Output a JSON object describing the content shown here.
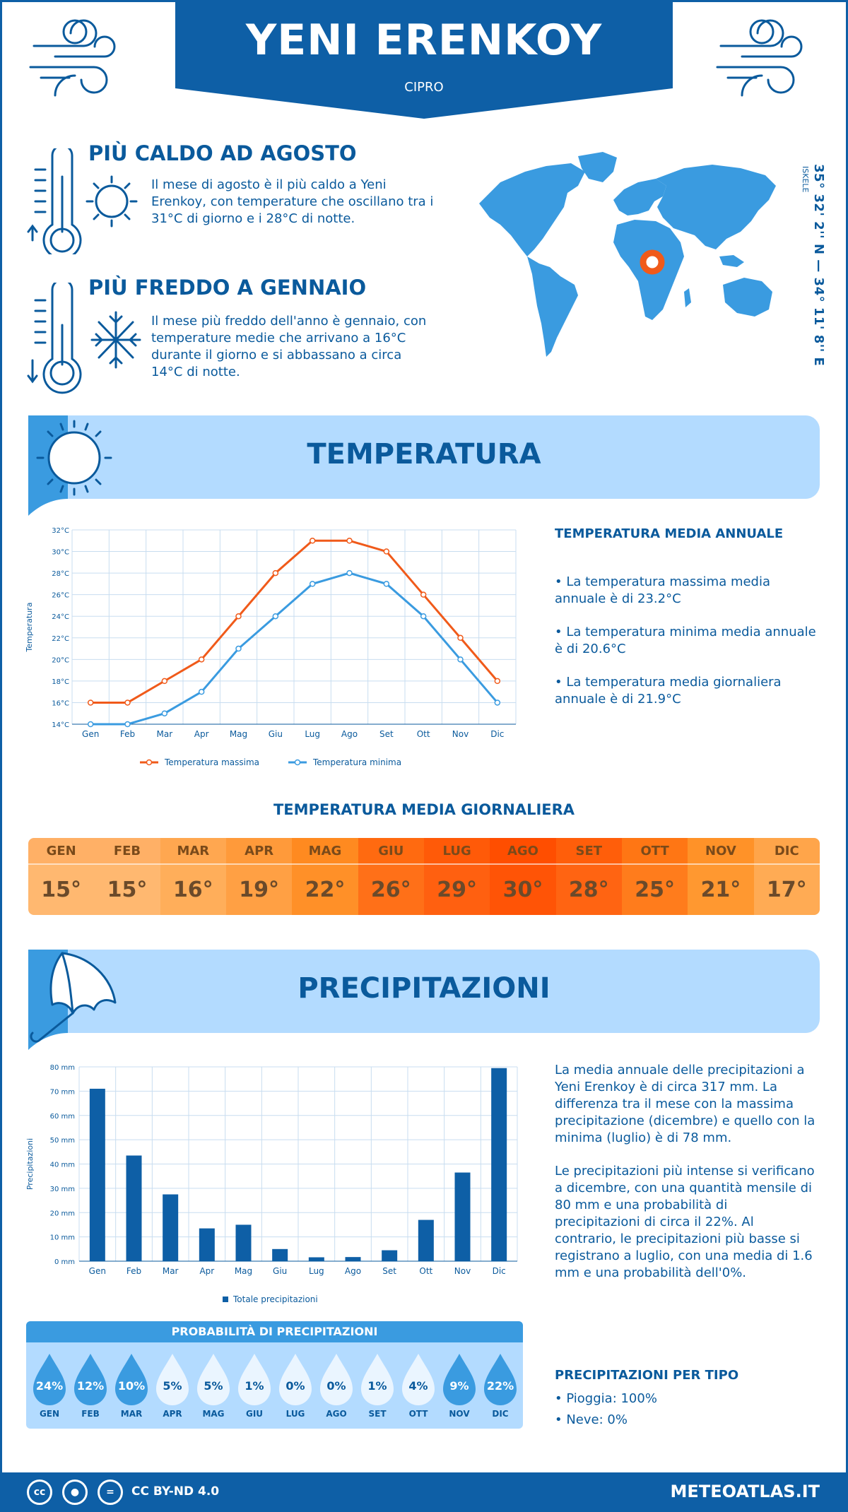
{
  "header": {
    "title": "YENI ERENKOY",
    "subtitle": "CIPRO"
  },
  "facts": [
    {
      "title": "PIÙ CALDO AD AGOSTO",
      "text": "Il mese di agosto è il più caldo a Yeni Erenkoy, con temperature che oscillano tra i 31°C di giorno e i 28°C di notte."
    },
    {
      "title": "PIÙ FREDDO A GENNAIO",
      "text": "Il mese più freddo dell'anno è gennaio, con temperature medie che arrivano a 16°C durante il giorno e si abbassano a circa 14°C di notte."
    }
  ],
  "location": {
    "coords": "35° 32' 2'' N — 34° 11' 8'' E",
    "region": "ISKELE"
  },
  "temperature": {
    "section_title": "TEMPERATURA",
    "side_title": "TEMPERATURA MEDIA ANNUALE",
    "bullets": [
      "• La temperatura massima media annuale è di 23.2°C",
      "• La temperatura minima media annuale è di 20.6°C",
      "• La temperatura media giornaliera annuale è di 21.9°C"
    ],
    "daily_title": "TEMPERATURA MEDIA GIORNALIERA",
    "daily": [
      {
        "month": "GEN",
        "value": "15°",
        "head": "#ffb066",
        "body": "#ffb870"
      },
      {
        "month": "FEB",
        "value": "15°",
        "head": "#ffb066",
        "body": "#ffb870"
      },
      {
        "month": "MAR",
        "value": "16°",
        "head": "#ffa750",
        "body": "#ffae5a"
      },
      {
        "month": "APR",
        "value": "19°",
        "head": "#ff9a3a",
        "body": "#ffa044"
      },
      {
        "month": "MAG",
        "value": "22°",
        "head": "#ff8a20",
        "body": "#ff9028"
      },
      {
        "month": "GIU",
        "value": "26°",
        "head": "#ff6a10",
        "body": "#ff7018"
      },
      {
        "month": "LUG",
        "value": "29°",
        "head": "#ff5a08",
        "body": "#ff6010"
      },
      {
        "month": "AGO",
        "value": "30°",
        "head": "#ff4e00",
        "body": "#ff5406"
      },
      {
        "month": "SET",
        "value": "28°",
        "head": "#ff5e0a",
        "body": "#ff6412"
      },
      {
        "month": "OTT",
        "value": "25°",
        "head": "#ff7614",
        "body": "#ff7c1c"
      },
      {
        "month": "NOV",
        "value": "21°",
        "head": "#ff9228",
        "body": "#ff9830"
      },
      {
        "month": "DIC",
        "value": "17°",
        "head": "#ffa54a",
        "body": "#ffab54"
      }
    ]
  },
  "chart_data": [
    {
      "type": "line",
      "categories": [
        "Gen",
        "Feb",
        "Mar",
        "Apr",
        "Mag",
        "Giu",
        "Lug",
        "Ago",
        "Set",
        "Ott",
        "Nov",
        "Dic"
      ],
      "series": [
        {
          "name": "Temperatura massima",
          "values": [
            16,
            16,
            18,
            20,
            24,
            28,
            31,
            31,
            30,
            26,
            22,
            18
          ],
          "color": "#f05a1a"
        },
        {
          "name": "Temperatura minima",
          "values": [
            14,
            14,
            15,
            17,
            21,
            24,
            27,
            28,
            27,
            24,
            20,
            16
          ],
          "color": "#3a9be0"
        }
      ],
      "ylabel": "Temperatura",
      "ylim": [
        14,
        32
      ],
      "yticks": [
        "14°C",
        "16°C",
        "18°C",
        "20°C",
        "22°C",
        "24°C",
        "26°C",
        "28°C",
        "30°C",
        "32°C"
      ],
      "grid": true,
      "legend": "bottom"
    },
    {
      "type": "bar",
      "categories": [
        "Gen",
        "Feb",
        "Mar",
        "Apr",
        "Mag",
        "Giu",
        "Lug",
        "Ago",
        "Set",
        "Ott",
        "Nov",
        "Dic"
      ],
      "series": [
        {
          "name": "Totale precipitazioni",
          "values": [
            71,
            43.5,
            27.5,
            13.5,
            15,
            5,
            1.6,
            1.7,
            4.5,
            17,
            36.5,
            79.5
          ],
          "color": "#0e5fa6"
        }
      ],
      "ylabel": "Precipitazioni",
      "ylim": [
        0,
        80
      ],
      "yticks": [
        "0 mm",
        "10 mm",
        "20 mm",
        "30 mm",
        "40 mm",
        "50 mm",
        "60 mm",
        "70 mm",
        "80 mm"
      ],
      "grid": true,
      "legend": "bottom"
    }
  ],
  "precipitation": {
    "section_title": "PRECIPITAZIONI",
    "para1": "La media annuale delle precipitazioni a Yeni Erenkoy è di circa 317 mm. La differenza tra il mese con la massima precipitazione (dicembre) e quello con la minima (luglio) è di 78 mm.",
    "para2": "Le precipitazioni più intense si verificano a dicembre, con una quantità mensile di 80 mm e una probabilità di precipitazioni di circa il 22%. Al contrario, le precipitazioni più basse si registrano a luglio, con una media di 1.6 mm e una probabilità dell'0%.",
    "prob_title": "PROBABILITÀ DI PRECIPITAZIONI",
    "probabilities": [
      {
        "month": "GEN",
        "value": "24%",
        "dark": true
      },
      {
        "month": "FEB",
        "value": "12%",
        "dark": true
      },
      {
        "month": "MAR",
        "value": "10%",
        "dark": true
      },
      {
        "month": "APR",
        "value": "5%",
        "dark": false
      },
      {
        "month": "MAG",
        "value": "5%",
        "dark": false
      },
      {
        "month": "GIU",
        "value": "1%",
        "dark": false
      },
      {
        "month": "LUG",
        "value": "0%",
        "dark": false
      },
      {
        "month": "AGO",
        "value": "0%",
        "dark": false
      },
      {
        "month": "SET",
        "value": "1%",
        "dark": false
      },
      {
        "month": "OTT",
        "value": "4%",
        "dark": false
      },
      {
        "month": "NOV",
        "value": "9%",
        "dark": true
      },
      {
        "month": "DIC",
        "value": "22%",
        "dark": true
      }
    ],
    "type_title": "PRECIPITAZIONI PER TIPO",
    "types": [
      "• Pioggia: 100%",
      "• Neve: 0%"
    ]
  },
  "footer": {
    "license": "CC BY-ND 4.0",
    "site": "METEOATLAS.IT",
    "icons": [
      "cc-icon",
      "by-icon",
      "nd-icon"
    ]
  },
  "colors": {
    "primary": "#0e5fa6",
    "light_band": "#b3dbff",
    "accent_blue": "#3a9be0",
    "accent_orange": "#f05a1a"
  }
}
